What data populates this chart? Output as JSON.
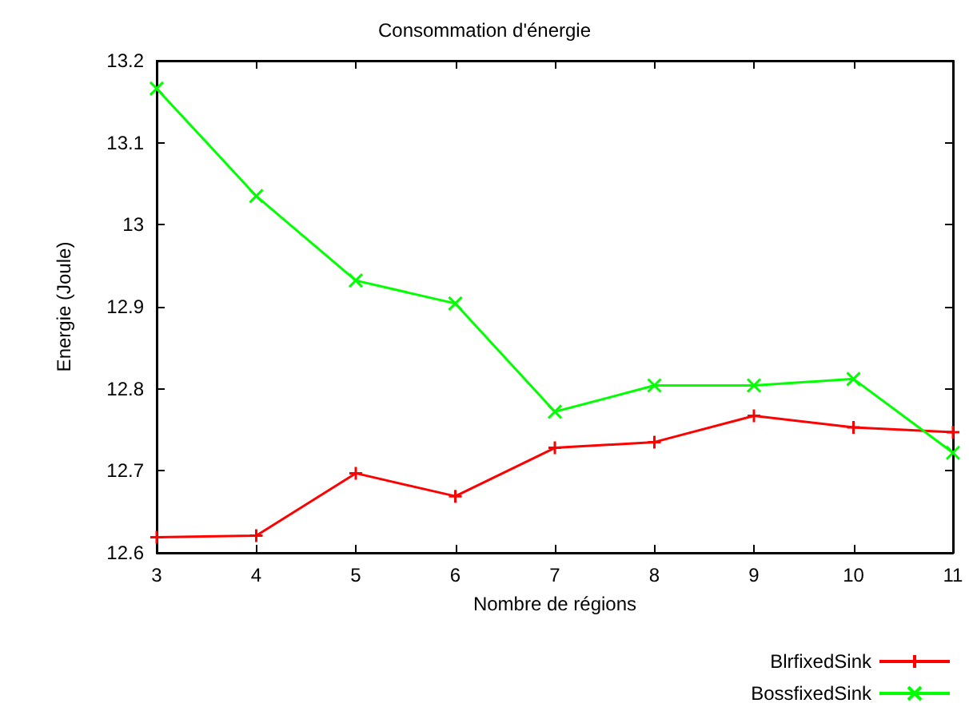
{
  "chart_data": {
    "type": "line",
    "title": "Consommation d'énergie",
    "xlabel": "Nombre de régions",
    "ylabel": "Energie (Joule)",
    "x": [
      3,
      4,
      5,
      6,
      7,
      8,
      9,
      10,
      11
    ],
    "series": [
      {
        "name": "BlrfixedSink",
        "color": "#ff0000",
        "marker": "plus",
        "values": [
          12.619,
          12.621,
          12.697,
          12.669,
          12.728,
          12.735,
          12.767,
          12.753,
          12.747
        ]
      },
      {
        "name": "BossfixedSink",
        "color": "#00ff00",
        "marker": "cross",
        "values": [
          13.166,
          13.035,
          12.932,
          12.904,
          12.772,
          12.804,
          12.804,
          12.812,
          12.722
        ]
      }
    ],
    "xlim": [
      3,
      11
    ],
    "xticks": [
      3,
      4,
      5,
      6,
      7,
      8,
      9,
      10,
      11
    ],
    "ylim": [
      12.6,
      13.2
    ],
    "yticks": [
      12.6,
      12.7,
      12.8,
      12.9,
      13,
      13.1,
      13.2
    ],
    "grid": false,
    "legend": "bottom right"
  }
}
